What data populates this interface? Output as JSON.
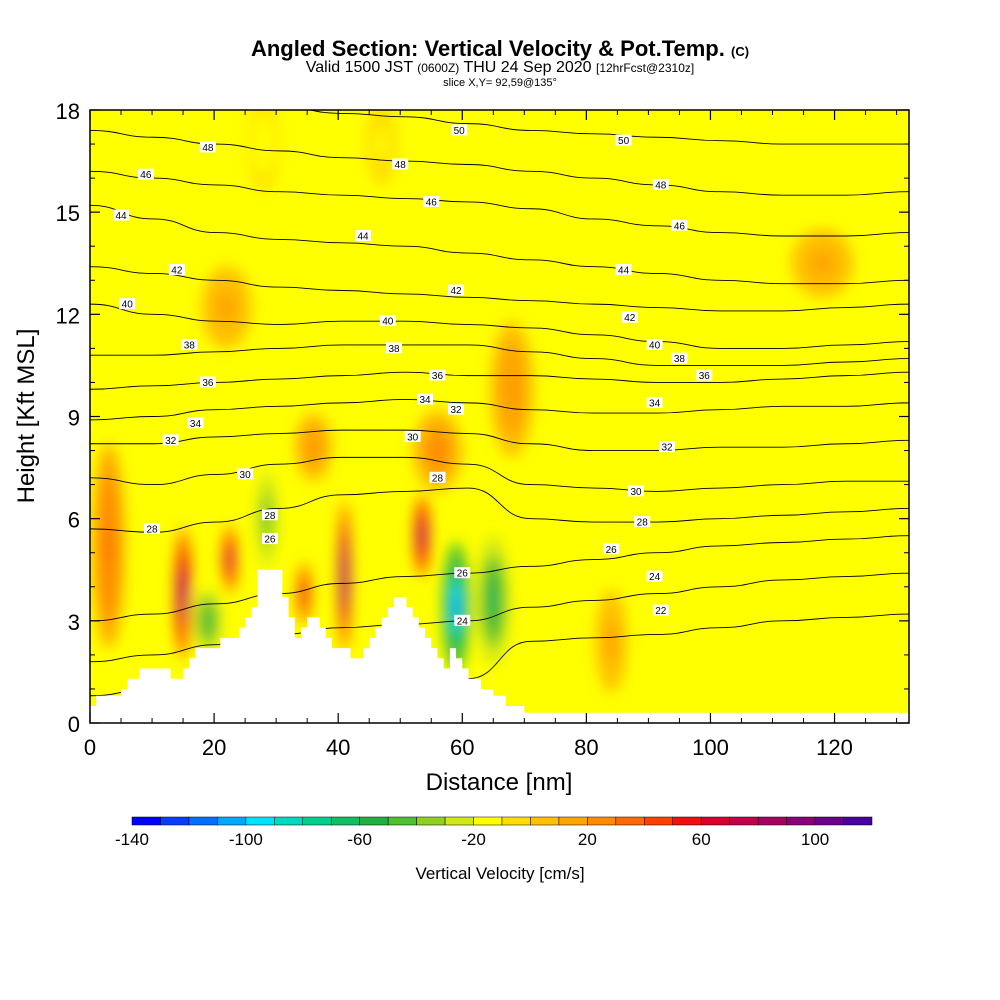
{
  "title": {
    "main": "Angled Section: Vertical Velocity & Pot.Temp.",
    "main_tag": "(C)",
    "valid_prefix": "Valid 1500 JST",
    "valid_utc": "(0600Z)",
    "valid_date": "THU 24 Sep 2020",
    "valid_fcst": "[12hrFcst@2310z]",
    "slice": "slice X,Y= 92,59@135°"
  },
  "chart_data": {
    "type": "heatmap",
    "xlabel": "Distance [nm]",
    "ylabel": "Height [Kft MSL]",
    "xlim": [
      0,
      132
    ],
    "ylim": [
      0,
      18
    ],
    "xticks": [
      0,
      20,
      40,
      60,
      80,
      100,
      120
    ],
    "yticks": [
      0,
      3,
      6,
      9,
      12,
      15,
      18
    ],
    "colorbar": {
      "label": "Vertical Velocity [cm/s]",
      "range": [
        -140,
        120
      ],
      "step": 10,
      "tick_labels": [
        -140,
        -100,
        -60,
        -20,
        20,
        60,
        100
      ],
      "colors": [
        "#0000ff",
        "#0a3cff",
        "#0070ff",
        "#00a8ff",
        "#00e0ff",
        "#00d8c0",
        "#00d08c",
        "#10c060",
        "#20b040",
        "#50c030",
        "#90d020",
        "#d0e818",
        "#ffff00",
        "#ffdd00",
        "#ffc000",
        "#ffa500",
        "#ff8c00",
        "#ff6a00",
        "#ff4000",
        "#f01010",
        "#d80030",
        "#c00048",
        "#a80060",
        "#8a0078",
        "#6a008c",
        "#4a00a0"
      ]
    },
    "theta_contours": [
      {
        "level": 22,
        "ys": [
          0.8,
          1.0,
          1.3,
          1.6,
          1.6,
          1.4,
          1.3,
          2.4,
          2.5,
          2.6,
          2.8,
          3.0,
          3.1,
          3.2
        ]
      },
      {
        "level": 24,
        "ys": [
          1.8,
          2.0,
          2.3,
          2.6,
          2.8,
          2.9,
          3.0,
          3.4,
          3.6,
          3.8,
          4.0,
          4.2,
          4.3,
          4.4
        ]
      },
      {
        "level": 26,
        "ys": [
          3.0,
          3.2,
          3.5,
          3.8,
          4.1,
          4.3,
          4.4,
          4.6,
          4.8,
          5.0,
          5.2,
          5.3,
          5.4,
          5.5
        ]
      },
      {
        "level": 28,
        "ys": [
          5.7,
          5.6,
          5.9,
          6.3,
          6.7,
          6.8,
          6.9,
          6.0,
          5.9,
          5.9,
          6.0,
          6.1,
          6.2,
          6.3
        ]
      },
      {
        "level": 30,
        "ys": [
          7.2,
          7.0,
          7.3,
          7.6,
          7.8,
          7.8,
          7.6,
          7.0,
          6.9,
          6.8,
          6.9,
          7.0,
          7.1,
          7.1
        ]
      },
      {
        "level": 32,
        "ys": [
          8.2,
          8.2,
          8.4,
          8.5,
          8.6,
          8.6,
          8.5,
          8.2,
          8.0,
          8.0,
          8.1,
          8.1,
          8.2,
          8.3
        ]
      },
      {
        "level": 34,
        "ys": [
          8.9,
          9.0,
          9.2,
          9.3,
          9.4,
          9.5,
          9.4,
          9.2,
          9.1,
          9.1,
          9.2,
          9.3,
          9.3,
          9.4
        ]
      },
      {
        "level": 36,
        "ys": [
          9.8,
          9.9,
          10.0,
          10.1,
          10.2,
          10.3,
          10.2,
          10.2,
          10.1,
          10.0,
          10.0,
          10.1,
          10.2,
          10.3
        ]
      },
      {
        "level": 38,
        "ys": [
          10.8,
          10.8,
          10.9,
          11.0,
          11.1,
          11.1,
          11.1,
          10.9,
          10.7,
          10.5,
          10.5,
          10.5,
          10.6,
          10.7
        ]
      },
      {
        "level": 40,
        "ys": [
          12.3,
          12.0,
          11.8,
          11.7,
          11.8,
          11.8,
          11.7,
          11.6,
          11.4,
          11.2,
          11.0,
          11.0,
          11.1,
          11.2
        ]
      },
      {
        "level": 42,
        "ys": [
          13.4,
          13.2,
          13.0,
          12.8,
          12.7,
          12.6,
          12.5,
          12.4,
          12.3,
          12.2,
          12.1,
          12.1,
          12.2,
          12.3
        ]
      },
      {
        "level": 44,
        "ys": [
          15.2,
          14.8,
          14.4,
          14.2,
          14.1,
          14.0,
          13.8,
          13.6,
          13.4,
          13.2,
          13.0,
          12.9,
          12.9,
          13.0
        ]
      },
      {
        "level": 46,
        "ys": [
          16.2,
          16.0,
          15.8,
          15.6,
          15.5,
          15.4,
          15.3,
          15.1,
          14.8,
          14.6,
          14.4,
          14.3,
          14.3,
          14.4
        ]
      },
      {
        "level": 48,
        "ys": [
          17.4,
          17.2,
          17.0,
          16.8,
          16.6,
          16.5,
          16.4,
          16.2,
          16.0,
          15.8,
          15.6,
          15.5,
          15.5,
          15.6
        ]
      },
      {
        "level": 50,
        "ys": [
          18.3,
          18.3,
          18.2,
          18.1,
          17.9,
          17.8,
          17.6,
          17.4,
          17.3,
          17.2,
          17.1,
          17.0,
          17.0,
          17.0
        ]
      }
    ],
    "contour_labels": [
      {
        "text": "50",
        "x": 59.5,
        "y": 17.4
      },
      {
        "text": "50",
        "x": 86,
        "y": 17.1
      },
      {
        "text": "48",
        "x": 19,
        "y": 16.9
      },
      {
        "text": "48",
        "x": 50,
        "y": 16.4
      },
      {
        "text": "48",
        "x": 92,
        "y": 15.8
      },
      {
        "text": "46",
        "x": 9,
        "y": 16.1
      },
      {
        "text": "46",
        "x": 55,
        "y": 15.3
      },
      {
        "text": "46",
        "x": 95,
        "y": 14.6
      },
      {
        "text": "44",
        "x": 5,
        "y": 14.9
      },
      {
        "text": "44",
        "x": 44,
        "y": 14.3
      },
      {
        "text": "44",
        "x": 86,
        "y": 13.3
      },
      {
        "text": "42",
        "x": 14,
        "y": 13.3
      },
      {
        "text": "42",
        "x": 59,
        "y": 12.7
      },
      {
        "text": "42",
        "x": 87,
        "y": 11.9
      },
      {
        "text": "40",
        "x": 6,
        "y": 12.3
      },
      {
        "text": "40",
        "x": 48,
        "y": 11.8
      },
      {
        "text": "40",
        "x": 91,
        "y": 11.1
      },
      {
        "text": "38",
        "x": 16,
        "y": 11.1
      },
      {
        "text": "38",
        "x": 49,
        "y": 11.0
      },
      {
        "text": "38",
        "x": 95,
        "y": 10.7
      },
      {
        "text": "36",
        "x": 19,
        "y": 10.0
      },
      {
        "text": "36",
        "x": 56,
        "y": 10.2
      },
      {
        "text": "36",
        "x": 99,
        "y": 10.2
      },
      {
        "text": "34",
        "x": 17,
        "y": 8.8
      },
      {
        "text": "34",
        "x": 54,
        "y": 9.5
      },
      {
        "text": "34",
        "x": 91,
        "y": 9.4
      },
      {
        "text": "32",
        "x": 13,
        "y": 8.3
      },
      {
        "text": "32",
        "x": 59,
        "y": 9.2
      },
      {
        "text": "32",
        "x": 93,
        "y": 8.1
      },
      {
        "text": "30",
        "x": 25,
        "y": 7.3
      },
      {
        "text": "30",
        "x": 52,
        "y": 8.4
      },
      {
        "text": "30",
        "x": 88,
        "y": 6.8
      },
      {
        "text": "28",
        "x": 10,
        "y": 5.7
      },
      {
        "text": "28",
        "x": 29,
        "y": 6.1
      },
      {
        "text": "28",
        "x": 56,
        "y": 7.2
      },
      {
        "text": "28",
        "x": 89,
        "y": 5.9
      },
      {
        "text": "26",
        "x": 29,
        "y": 5.4
      },
      {
        "text": "26",
        "x": 60,
        "y": 4.4
      },
      {
        "text": "26",
        "x": 84,
        "y": 5.1
      },
      {
        "text": "24",
        "x": 60,
        "y": 3.0
      },
      {
        "text": "24",
        "x": 91,
        "y": 4.3
      },
      {
        "text": "22",
        "x": 92,
        "y": 3.3
      }
    ],
    "velocity_cells": [
      {
        "x": 15,
        "y": 3.8,
        "rx": 1.4,
        "ry": 1.9,
        "v": 95
      },
      {
        "x": 22.5,
        "y": 4.8,
        "rx": 1.3,
        "ry": 1.0,
        "v": 75
      },
      {
        "x": 34.5,
        "y": 3.8,
        "rx": 1.2,
        "ry": 0.9,
        "v": 65
      },
      {
        "x": 41,
        "y": 4.3,
        "rx": 1.0,
        "ry": 2.2,
        "v": 110
      },
      {
        "x": 53.5,
        "y": 5.5,
        "rx": 1.3,
        "ry": 1.2,
        "v": 90
      },
      {
        "x": 28.5,
        "y": 6.0,
        "rx": 2.5,
        "ry": 2.0,
        "v": -45
      },
      {
        "x": 19,
        "y": 3.0,
        "rx": 2.8,
        "ry": 1.2,
        "v": -55
      },
      {
        "x": 59,
        "y": 3.4,
        "rx": 2.2,
        "ry": 1.9,
        "v": -115
      },
      {
        "x": 65,
        "y": 3.6,
        "rx": 2.6,
        "ry": 1.9,
        "v": -70
      },
      {
        "x": 36,
        "y": 8.1,
        "rx": 3.0,
        "ry": 1.0,
        "v": 20
      },
      {
        "x": 56,
        "y": 8.0,
        "rx": 4.0,
        "ry": 1.2,
        "v": 25
      },
      {
        "x": 68,
        "y": 9.8,
        "rx": 3.5,
        "ry": 2.0,
        "v": 20
      },
      {
        "x": 3,
        "y": 5.2,
        "rx": 2.5,
        "ry": 3.0,
        "v": 35
      },
      {
        "x": 22,
        "y": 12.2,
        "rx": 4.0,
        "ry": 1.2,
        "v": 15
      },
      {
        "x": 28,
        "y": 17,
        "rx": 2.5,
        "ry": 1.4,
        "v": -20
      },
      {
        "x": 47,
        "y": 17,
        "rx": 2.5,
        "ry": 1.2,
        "v": -15
      },
      {
        "x": 84,
        "y": 2.4,
        "rx": 2.5,
        "ry": 1.5,
        "v": 15
      },
      {
        "x": 118,
        "y": 13.5,
        "rx": 5.0,
        "ry": 1.0,
        "v": 12
      }
    ],
    "terrain": [
      [
        0,
        0.5
      ],
      [
        1,
        0.5
      ],
      [
        1,
        0.8
      ],
      [
        5,
        0.8
      ],
      [
        5,
        1.0
      ],
      [
        6,
        1.0
      ],
      [
        6,
        1.3
      ],
      [
        8,
        1.3
      ],
      [
        8,
        1.6
      ],
      [
        13,
        1.6
      ],
      [
        13,
        1.3
      ],
      [
        15,
        1.3
      ],
      [
        15,
        1.6
      ],
      [
        16,
        1.6
      ],
      [
        16,
        1.9
      ],
      [
        17,
        1.9
      ],
      [
        17,
        2.2
      ],
      [
        21,
        2.2
      ],
      [
        21,
        2.5
      ],
      [
        24,
        2.5
      ],
      [
        24,
        2.8
      ],
      [
        25,
        2.8
      ],
      [
        25,
        3.1
      ],
      [
        26,
        3.1
      ],
      [
        26,
        3.4
      ],
      [
        27,
        3.4
      ],
      [
        27,
        4.5
      ],
      [
        31,
        4.5
      ],
      [
        31,
        3.7
      ],
      [
        32,
        3.7
      ],
      [
        32,
        3.1
      ],
      [
        33,
        3.1
      ],
      [
        33,
        2.5
      ],
      [
        34,
        2.5
      ],
      [
        34,
        2.8
      ],
      [
        35,
        2.8
      ],
      [
        35,
        3.1
      ],
      [
        37,
        3.1
      ],
      [
        37,
        2.8
      ],
      [
        38,
        2.8
      ],
      [
        38,
        2.5
      ],
      [
        39,
        2.5
      ],
      [
        39,
        2.2
      ],
      [
        42,
        2.2
      ],
      [
        42,
        1.9
      ],
      [
        44,
        1.9
      ],
      [
        44,
        2.2
      ],
      [
        45,
        2.2
      ],
      [
        45,
        2.5
      ],
      [
        46,
        2.5
      ],
      [
        46,
        2.8
      ],
      [
        47,
        2.8
      ],
      [
        47,
        3.1
      ],
      [
        48,
        3.1
      ],
      [
        48,
        3.4
      ],
      [
        49,
        3.4
      ],
      [
        49,
        3.7
      ],
      [
        51,
        3.7
      ],
      [
        51,
        3.4
      ],
      [
        52,
        3.4
      ],
      [
        52,
        3.1
      ],
      [
        53,
        3.1
      ],
      [
        53,
        2.8
      ],
      [
        54,
        2.8
      ],
      [
        54,
        2.5
      ],
      [
        55,
        2.5
      ],
      [
        55,
        2.2
      ],
      [
        56,
        2.2
      ],
      [
        56,
        1.9
      ],
      [
        57,
        1.9
      ],
      [
        57,
        1.6
      ],
      [
        58,
        1.6
      ],
      [
        58,
        2.2
      ],
      [
        59,
        2.2
      ],
      [
        59,
        1.9
      ],
      [
        60,
        1.9
      ],
      [
        60,
        1.6
      ],
      [
        61,
        1.6
      ],
      [
        61,
        1.3
      ],
      [
        63,
        1.3
      ],
      [
        63,
        1.0
      ],
      [
        65,
        1.0
      ],
      [
        65,
        0.8
      ],
      [
        67,
        0.8
      ],
      [
        67,
        0.5
      ],
      [
        70,
        0.5
      ],
      [
        70,
        0.3
      ],
      [
        132,
        0.3
      ],
      [
        132,
        0
      ]
    ]
  }
}
